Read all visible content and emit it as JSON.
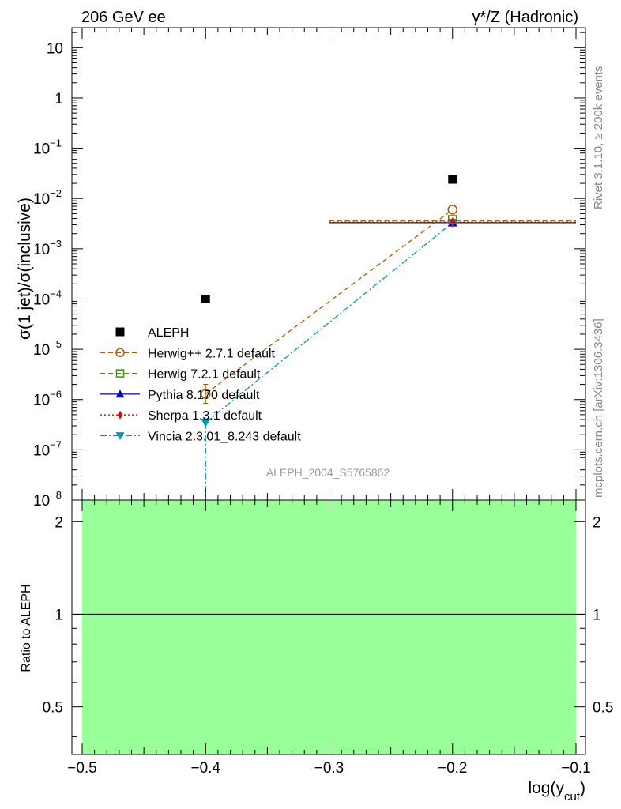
{
  "header": {
    "left_title": "206 GeV ee",
    "right_title": "γ*/Z (Hadronic)"
  },
  "side_labels": {
    "rivet": "Rivet 3.1.10, ≥ 200k events",
    "mcplots": "mcplots.cern.ch [arXiv:1306.3436]"
  },
  "watermark": "ALEPH_2004_S5765862",
  "colors": {
    "data": "#000000",
    "herwigpp": "#b35900",
    "herwig7": "#339900",
    "pythia": "#0000cc",
    "sherpa": "#ee0000",
    "vincia": "#0099bb",
    "band": "#99ff99"
  },
  "chart_data": [
    {
      "type": "scatter",
      "panel": "main",
      "ylabel": "σ(1 jet)/σ(inclusive)",
      "xlabel": "",
      "xlim": [
        -0.5,
        -0.1
      ],
      "ylim": [
        1e-08,
        25
      ],
      "yscale": "log",
      "xticks": [
        -0.5,
        -0.4,
        -0.3,
        -0.2,
        -0.1
      ],
      "yticks": [
        {
          "value": 10,
          "base": "10",
          "exp": ""
        },
        {
          "value": 1,
          "base": "1",
          "exp": ""
        },
        {
          "value": 0.1,
          "base": "10",
          "exp": "−1"
        },
        {
          "value": 0.01,
          "base": "10",
          "exp": "−2"
        },
        {
          "value": 0.001,
          "base": "10",
          "exp": "−3"
        },
        {
          "value": 0.0001,
          "base": "10",
          "exp": "−4"
        },
        {
          "value": 1e-05,
          "base": "10",
          "exp": "−5"
        },
        {
          "value": 1e-06,
          "base": "10",
          "exp": "−6"
        },
        {
          "value": 1e-07,
          "base": "10",
          "exp": "−7"
        },
        {
          "value": 1e-08,
          "base": "10",
          "exp": "−8"
        }
      ],
      "legend_position": "lower-left",
      "series": [
        {
          "name": "ALEPH",
          "key": "data",
          "marker": "square",
          "line": "none",
          "x": [
            -0.4,
            -0.2
          ],
          "y": [
            0.0001,
            0.024
          ]
        },
        {
          "name": "Herwig++ 2.7.1 default",
          "key": "herwigpp",
          "marker": "open-circle",
          "line": "dashed",
          "x": [
            -0.4,
            -0.2
          ],
          "y": [
            1.3e-06,
            0.006
          ],
          "hbar": {
            "x0": -0.3,
            "x1": -0.1,
            "y": 0.0037
          }
        },
        {
          "name": "Herwig 7.2.1 default",
          "key": "herwig7",
          "marker": "open-square",
          "line": "dashed",
          "x": [
            -0.2
          ],
          "y": [
            0.0038
          ],
          "hbar": {
            "x0": -0.3,
            "x1": -0.1,
            "y": 0.0036
          }
        },
        {
          "name": "Pythia 8.170 default",
          "key": "pythia",
          "marker": "triangle-up",
          "line": "solid",
          "x": [
            -0.2
          ],
          "y": [
            0.0033
          ],
          "hbar": {
            "x0": -0.3,
            "x1": -0.1,
            "y": 0.0033
          }
        },
        {
          "name": "Sherpa 1.3.1 default",
          "key": "sherpa",
          "marker": "diamond",
          "line": "dotted",
          "x": [
            -0.2
          ],
          "y": [
            0.0034
          ],
          "hbar": {
            "x0": -0.3,
            "x1": -0.1,
            "y": 0.0034
          }
        },
        {
          "name": "Vincia 2.3.01_8.243 default",
          "key": "vincia",
          "marker": "triangle-down",
          "line": "dash-dot",
          "x": [
            -0.4,
            -0.2
          ],
          "y": [
            3.5e-07,
            0.0033
          ],
          "drop_to_bottom_at": -0.4
        }
      ]
    },
    {
      "type": "scatter",
      "panel": "ratio",
      "ylabel": "Ratio to ALEPH",
      "xlabel": "log(y_cut)",
      "xlabel_main": "log(y",
      "xlabel_sub": "cut",
      "xlabel_end": ")",
      "xlim": [
        -0.5,
        -0.1
      ],
      "ylim": [
        0.35,
        2.35
      ],
      "yscale": "log",
      "xticks": [
        -0.5,
        -0.4,
        -0.3,
        -0.2,
        -0.1
      ],
      "xtick_labels": [
        "−0.5",
        "−0.4",
        "−0.3",
        "−0.2",
        "−0.1"
      ],
      "yticks": [
        {
          "value": 2,
          "label": "2"
        },
        {
          "value": 1,
          "label": "1"
        },
        {
          "value": 0.5,
          "label": "0.5"
        }
      ],
      "reference_line": 1,
      "band": {
        "x0": -0.5,
        "x1": -0.1,
        "y0": 0.35,
        "y1": 2.35
      }
    }
  ]
}
